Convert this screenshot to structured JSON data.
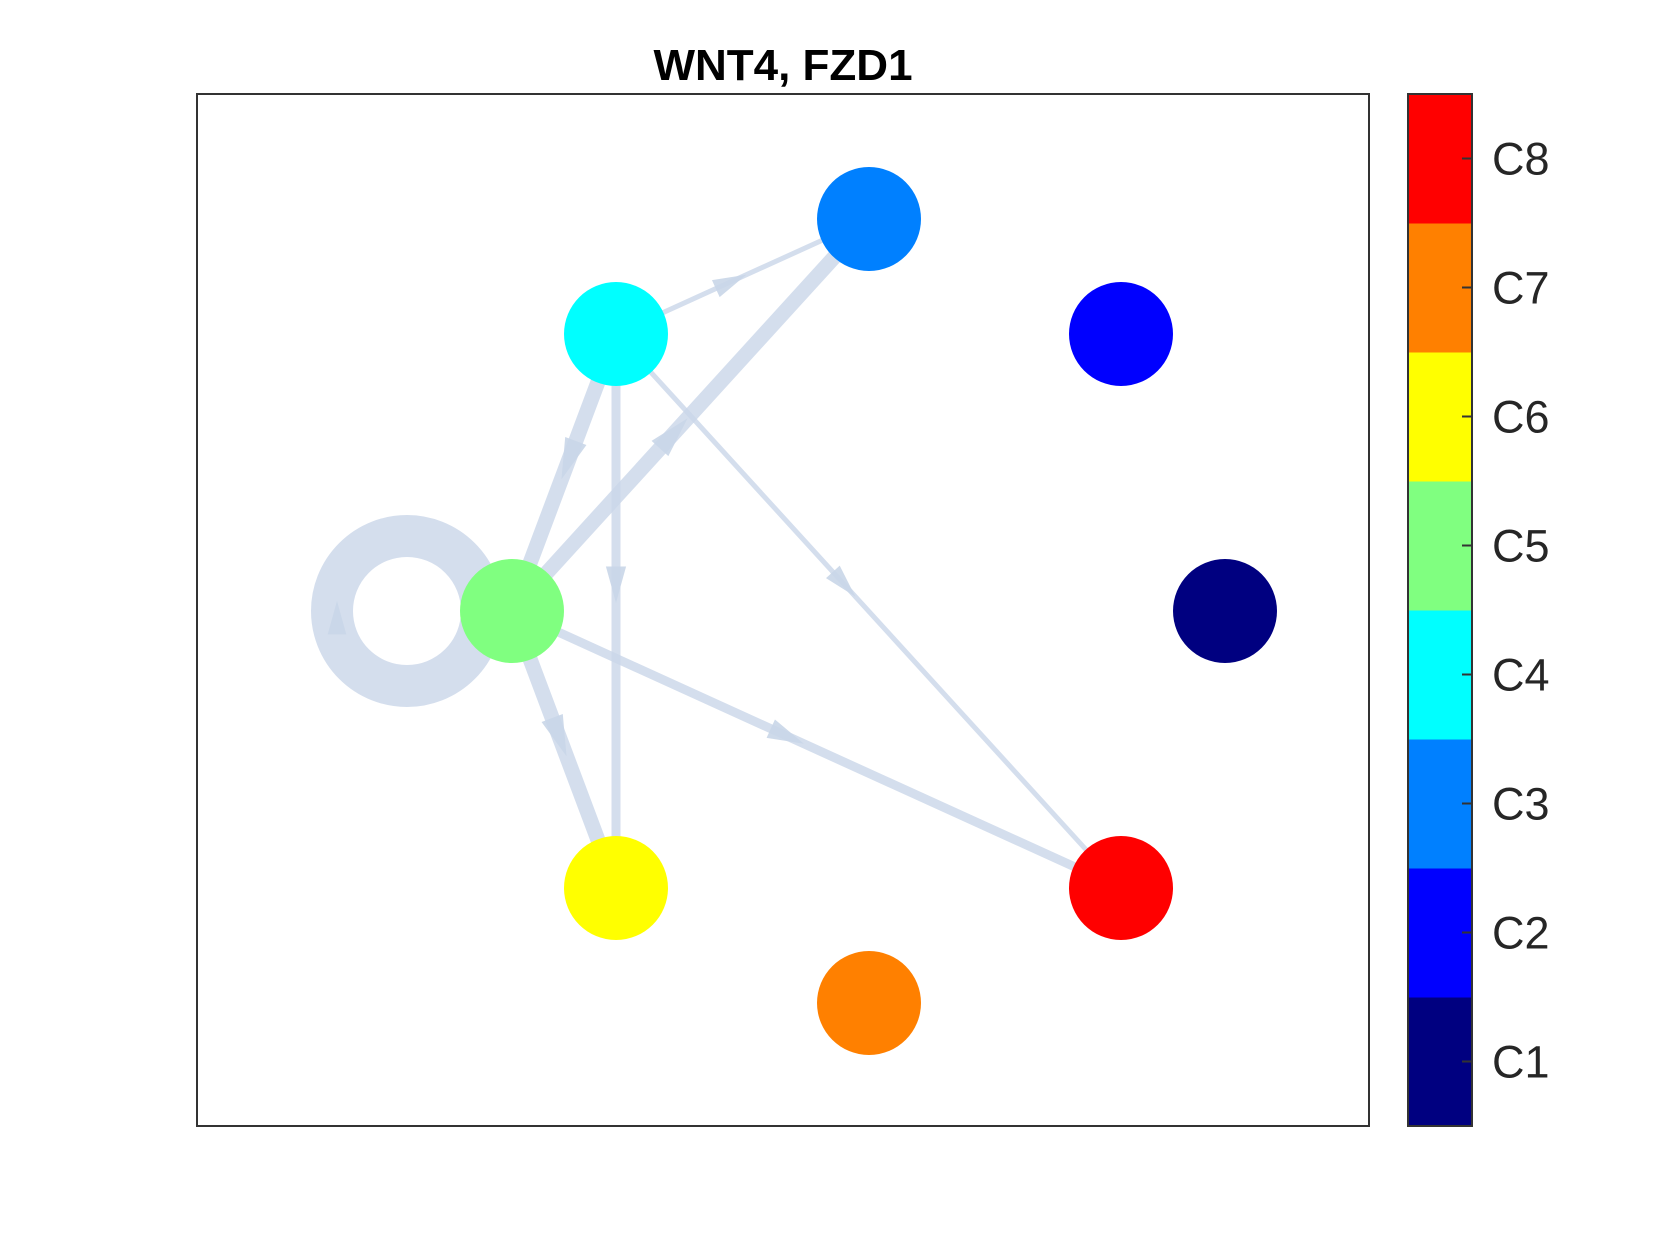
{
  "figure": {
    "title": "WNT4, FZD1"
  },
  "nodes": [
    {
      "id": "C1",
      "color": "#000080"
    },
    {
      "id": "C2",
      "color": "#0000ff"
    },
    {
      "id": "C3",
      "color": "#0080ff"
    },
    {
      "id": "C4",
      "color": "#00ffff"
    },
    {
      "id": "C5",
      "color": "#80ff80"
    },
    {
      "id": "C6",
      "color": "#ffff00"
    },
    {
      "id": "C7",
      "color": "#ff8000"
    },
    {
      "id": "C8",
      "color": "#ff0000"
    }
  ],
  "edges": [
    {
      "source": "C5",
      "target": "C5",
      "weight": "heavy",
      "self_loop": true
    },
    {
      "source": "C4",
      "target": "C3",
      "weight": "light"
    },
    {
      "source": "C5",
      "target": "C3",
      "weight": "heavy"
    },
    {
      "source": "C4",
      "target": "C5",
      "weight": "heavy"
    },
    {
      "source": "C4",
      "target": "C6",
      "weight": "medium"
    },
    {
      "source": "C4",
      "target": "C8",
      "weight": "light"
    },
    {
      "source": "C5",
      "target": "C6",
      "weight": "heavy"
    },
    {
      "source": "C5",
      "target": "C8",
      "weight": "medium"
    }
  ],
  "colorbar": {
    "labels": [
      "C1",
      "C2",
      "C3",
      "C4",
      "C5",
      "C6",
      "C7",
      "C8"
    ],
    "colors": [
      "#000080",
      "#0000ff",
      "#0080ff",
      "#00ffff",
      "#80ff80",
      "#ffff00",
      "#ff8000",
      "#ff0000"
    ]
  },
  "edge_color": "#c9d6e8"
}
